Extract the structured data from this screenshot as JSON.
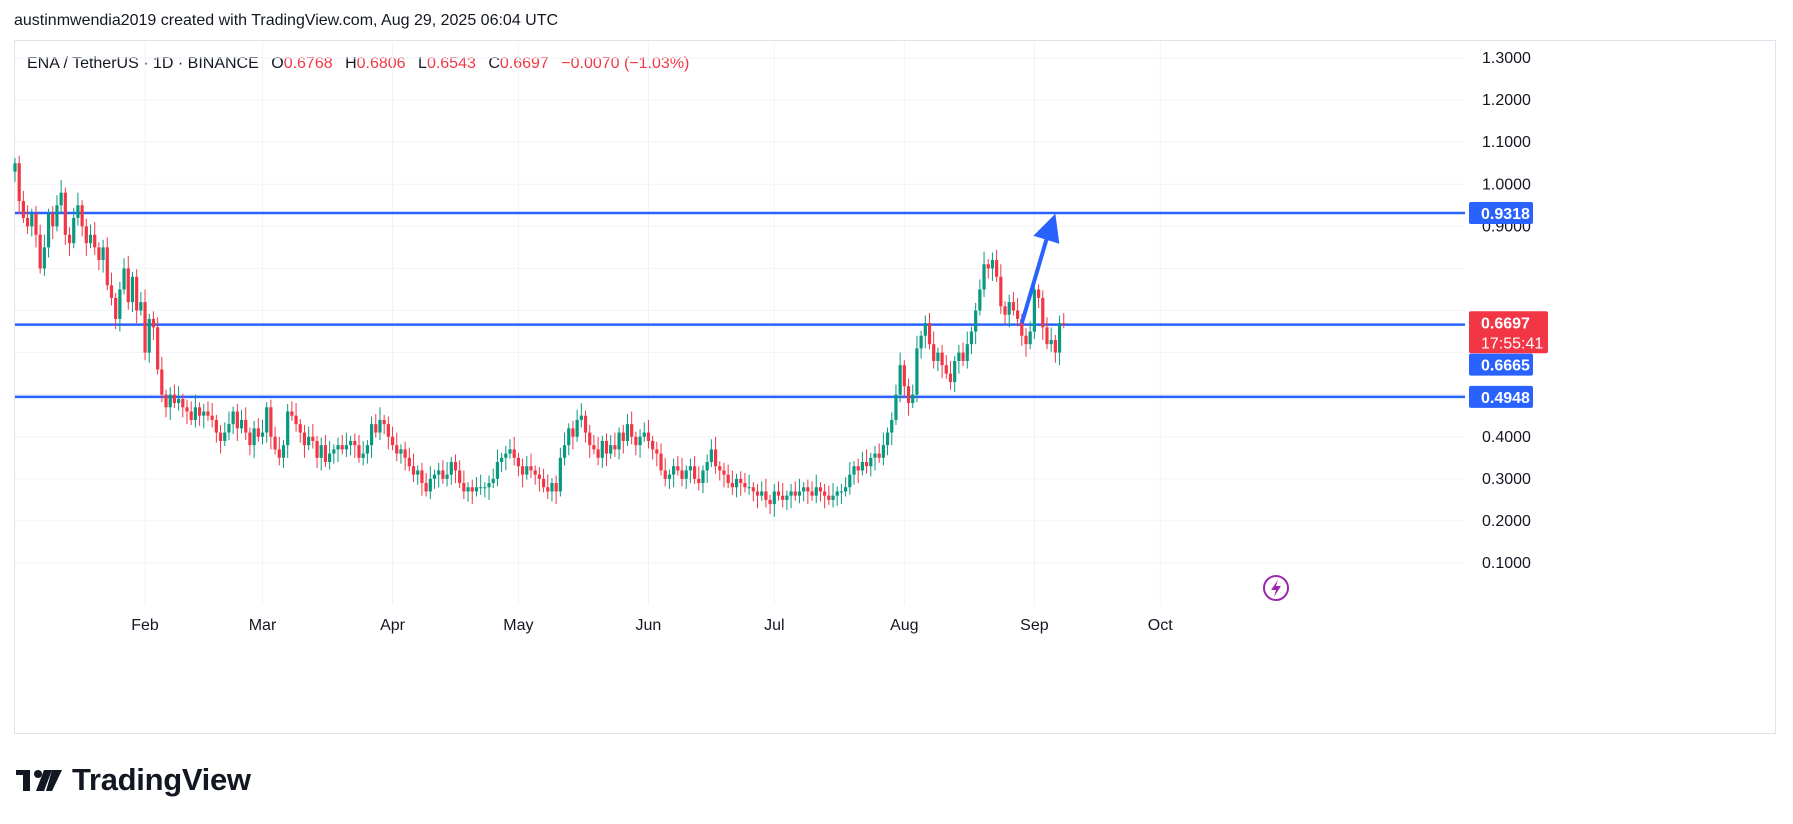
{
  "header": {
    "text": "austinmwendia2019 created with TradingView.com, Aug 29, 2025 06:04 UTC"
  },
  "legend": {
    "symbol": "ENA / TetherUS · 1D · BINANCE",
    "open_label": "O",
    "open": "0.6768",
    "high_label": "H",
    "high": "0.6806",
    "low_label": "L",
    "low": "0.6543",
    "close_label": "C",
    "close": "0.6697",
    "change": "−0.0070 (−1.03%)"
  },
  "brand": {
    "name": "TradingView",
    "icon": "tradingview-logo-icon"
  },
  "colors": {
    "up": "#089981",
    "down": "#f23645",
    "level": "#2962ff",
    "grid": "#f0f3fa"
  },
  "chart_data": {
    "type": "candlestick",
    "ylim": [
      0,
      1.35
    ],
    "yticks": [
      "0.1000",
      "0.2000",
      "0.3000",
      "0.4000",
      "0.9000",
      "1.0000",
      "1.1000",
      "1.2000",
      "1.3000"
    ],
    "xticks": [
      {
        "label": "Feb",
        "day": 31
      },
      {
        "label": "Mar",
        "day": 59
      },
      {
        "label": "Apr",
        "day": 90
      },
      {
        "label": "May",
        "day": 120
      },
      {
        "label": "Jun",
        "day": 151
      },
      {
        "label": "Jul",
        "day": 181
      },
      {
        "label": "Aug",
        "day": 212
      },
      {
        "label": "Sep",
        "day": 243
      },
      {
        "label": "Oct",
        "day": 273
      }
    ],
    "levels": [
      {
        "label": "0.9318",
        "value": 0.9318
      },
      {
        "label": "0.6665",
        "value": 0.6665
      },
      {
        "label": "0.4948",
        "value": 0.4948
      }
    ],
    "last_price": {
      "label": "0.6697",
      "value": 0.6697,
      "countdown": "17:55:41"
    },
    "arrow": {
      "from_day": 240,
      "from_value": 0.67,
      "to_day": 248,
      "to_value": 0.93
    },
    "closes": [
      1.05,
      0.96,
      0.92,
      0.9,
      0.93,
      0.88,
      0.8,
      0.85,
      0.93,
      0.9,
      0.95,
      0.98,
      0.88,
      0.86,
      0.92,
      0.95,
      0.9,
      0.86,
      0.88,
      0.85,
      0.82,
      0.85,
      0.76,
      0.73,
      0.68,
      0.75,
      0.8,
      0.72,
      0.78,
      0.7,
      0.72,
      0.6,
      0.68,
      0.66,
      0.56,
      0.5,
      0.47,
      0.5,
      0.48,
      0.49,
      0.47,
      0.46,
      0.44,
      0.47,
      0.45,
      0.46,
      0.45,
      0.44,
      0.41,
      0.39,
      0.41,
      0.43,
      0.46,
      0.42,
      0.44,
      0.41,
      0.38,
      0.42,
      0.4,
      0.41,
      0.47,
      0.4,
      0.37,
      0.35,
      0.38,
      0.46,
      0.45,
      0.43,
      0.41,
      0.38,
      0.4,
      0.39,
      0.35,
      0.38,
      0.34,
      0.36,
      0.37,
      0.38,
      0.37,
      0.38,
      0.39,
      0.38,
      0.35,
      0.36,
      0.38,
      0.43,
      0.41,
      0.44,
      0.43,
      0.4,
      0.38,
      0.36,
      0.37,
      0.35,
      0.33,
      0.31,
      0.32,
      0.29,
      0.27,
      0.3,
      0.31,
      0.32,
      0.3,
      0.31,
      0.34,
      0.32,
      0.29,
      0.27,
      0.28,
      0.27,
      0.28,
      0.28,
      0.28,
      0.29,
      0.3,
      0.34,
      0.35,
      0.36,
      0.37,
      0.35,
      0.33,
      0.31,
      0.33,
      0.32,
      0.31,
      0.3,
      0.28,
      0.27,
      0.29,
      0.27,
      0.35,
      0.38,
      0.42,
      0.4,
      0.44,
      0.45,
      0.41,
      0.38,
      0.37,
      0.35,
      0.39,
      0.36,
      0.38,
      0.37,
      0.41,
      0.39,
      0.43,
      0.4,
      0.38,
      0.4,
      0.41,
      0.39,
      0.37,
      0.36,
      0.32,
      0.3,
      0.31,
      0.33,
      0.32,
      0.3,
      0.32,
      0.33,
      0.3,
      0.29,
      0.32,
      0.34,
      0.37,
      0.33,
      0.32,
      0.31,
      0.29,
      0.28,
      0.3,
      0.29,
      0.28,
      0.28,
      0.27,
      0.26,
      0.27,
      0.25,
      0.24,
      0.27,
      0.26,
      0.25,
      0.26,
      0.27,
      0.26,
      0.27,
      0.28,
      0.27,
      0.26,
      0.28,
      0.27,
      0.26,
      0.25,
      0.26,
      0.27,
      0.27,
      0.28,
      0.31,
      0.33,
      0.32,
      0.34,
      0.33,
      0.35,
      0.36,
      0.35,
      0.38,
      0.41,
      0.44,
      0.5,
      0.57,
      0.52,
      0.48,
      0.5,
      0.61,
      0.64,
      0.67,
      0.62,
      0.58,
      0.6,
      0.57,
      0.55,
      0.53,
      0.58,
      0.6,
      0.58,
      0.62,
      0.65,
      0.7,
      0.75,
      0.81,
      0.8,
      0.82,
      0.78,
      0.71,
      0.69,
      0.72,
      0.7,
      0.68,
      0.64,
      0.62,
      0.65,
      0.75,
      0.73,
      0.66,
      0.62,
      0.63,
      0.6,
      0.67,
      0.6697
    ]
  }
}
